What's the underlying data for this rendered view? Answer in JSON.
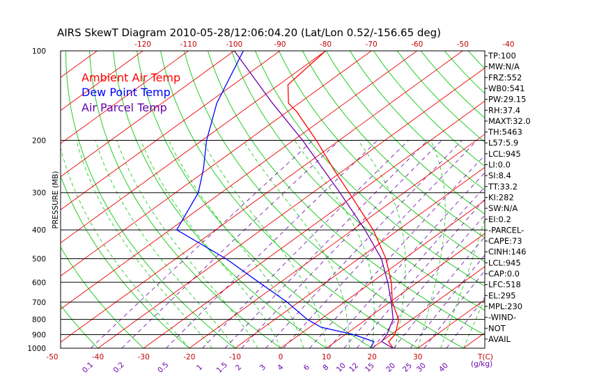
{
  "chart_data": {
    "type": "line",
    "title": "AIRS SkewT Diagram 2010-05-28/12:06:04.20 (Lat/Lon 0.52/-156.65 deg)",
    "ylabel": "PRESSURE (MB)",
    "y_scale": "log-pressure",
    "ylim": [
      1000,
      100
    ],
    "pressure_ticks": [
      100,
      200,
      300,
      400,
      500,
      600,
      700,
      800,
      900,
      1000
    ],
    "top_temp_ticks": [
      -120,
      -110,
      -100,
      -90,
      -80,
      -70,
      -60,
      -50,
      -40
    ],
    "bottom_temp_ticks": [
      -50,
      -40,
      -30,
      -20,
      -10,
      0,
      10,
      20,
      30
    ],
    "bottom_temp_unit": "T(C)",
    "mixing_ratio_ticks": [
      "0.1",
      "0.2",
      "0.5",
      "1",
      "1.5",
      "2",
      "3",
      "4",
      "6",
      "8",
      "10",
      "12",
      "15",
      "20",
      "25",
      "30",
      "40"
    ],
    "mixing_ratio_unit": "(g/kg)",
    "legend": [
      {
        "name": "Ambient Air Temp",
        "color": "#ff0000"
      },
      {
        "name": "Dew Point Temp",
        "color": "#0000ff"
      },
      {
        "name": "Air Parcel Temp",
        "color": "#6a00a8"
      }
    ],
    "series": [
      {
        "name": "Ambient Air Temp",
        "color": "#ff0000",
        "points": [
          [
            1000,
            24.6
          ],
          [
            950,
            21.6
          ],
          [
            900,
            20.9
          ],
          [
            850,
            19.1
          ],
          [
            800,
            17.1
          ],
          [
            700,
            10.5
          ],
          [
            600,
            4.3
          ],
          [
            500,
            -4.0
          ],
          [
            400,
            -15.5
          ],
          [
            300,
            -32.0
          ],
          [
            250,
            -42.5
          ],
          [
            200,
            -55.0
          ],
          [
            160,
            -68.0
          ],
          [
            150,
            -72.3
          ],
          [
            130,
            -78.0
          ],
          [
            100,
            -80.0
          ]
        ]
      },
      {
        "name": "Dew Point Temp",
        "color": "#0000ff",
        "points": [
          [
            1000,
            19.6
          ],
          [
            950,
            18.4
          ],
          [
            900,
            11.9
          ],
          [
            850,
            2.5
          ],
          [
            800,
            -2.9
          ],
          [
            700,
            -12.5
          ],
          [
            600,
            -24.7
          ],
          [
            500,
            -39.0
          ],
          [
            400,
            -58.5
          ],
          [
            300,
            -65.0
          ],
          [
            250,
            -71.0
          ],
          [
            200,
            -79.0
          ],
          [
            150,
            -88.0
          ],
          [
            100,
            -98.0
          ]
        ]
      },
      {
        "name": "Air Parcel Temp",
        "color": "#6a00a8",
        "points": [
          [
            1000,
            24.6
          ],
          [
            950,
            20.1
          ],
          [
            900,
            19.1
          ],
          [
            800,
            15.9
          ],
          [
            700,
            10.3
          ],
          [
            600,
            3.5
          ],
          [
            500,
            -5.0
          ],
          [
            400,
            -17.3
          ],
          [
            300,
            -34.0
          ],
          [
            200,
            -58.0
          ],
          [
            150,
            -75.8
          ],
          [
            100,
            -100.0
          ]
        ]
      }
    ],
    "indices": [
      "TP:100",
      "MW:N/A",
      "FRZ:552",
      "WB0:541",
      "PW:29.15",
      "RH:37.4",
      "MAXT:32.0",
      "TH:5463",
      "L57:5.9",
      "LCL:945",
      "LI:0.0",
      "SI:8.4",
      "TT:33.2",
      "KI:282",
      "SW:N/A",
      "EI:0.2",
      "-PARCEL-",
      "CAPE:73",
      "CINH:146",
      "LCL:945",
      "CAP:0.0",
      "LFC:518",
      "EL:295",
      "MPL:230",
      "-WIND-",
      "NOT",
      "AVAIL"
    ]
  }
}
